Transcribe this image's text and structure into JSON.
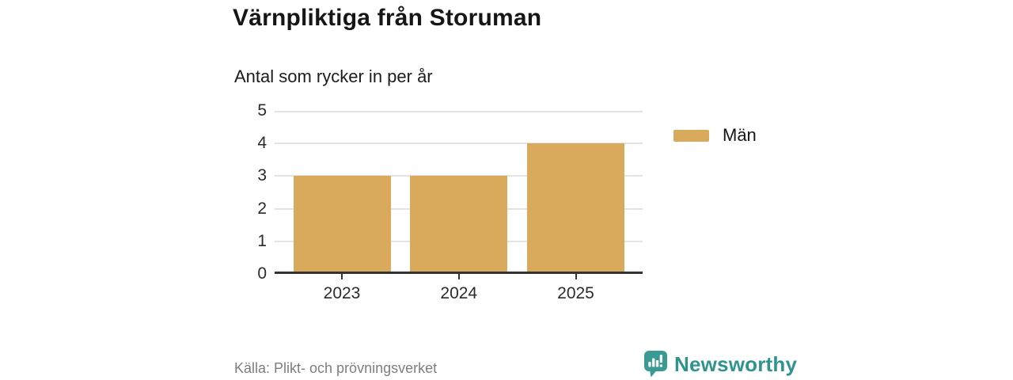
{
  "header": {
    "title": "Värnpliktiga från Storuman",
    "subtitle": "Antal som rycker in per år"
  },
  "chart_data": {
    "type": "bar",
    "categories": [
      "2023",
      "2024",
      "2025"
    ],
    "series": [
      {
        "name": "Män",
        "values": [
          3,
          3,
          4
        ],
        "color": "#d9a95c"
      }
    ],
    "title": "Värnpliktiga från Storuman",
    "subtitle": "Antal som rycker in per år",
    "xlabel": "",
    "ylabel": "",
    "ylim": [
      0,
      5
    ],
    "yticks": [
      0,
      1,
      2,
      3,
      4,
      5
    ],
    "grid": true,
    "legend_position": "right"
  },
  "legend": {
    "items": [
      {
        "label": "Män",
        "color": "#d9a95c"
      }
    ]
  },
  "footer": {
    "source": "Källa: Plikt- och prövningsverket",
    "brand": "Newsworthy"
  },
  "colors": {
    "bar": "#d9a95c",
    "brand": "#2f948e",
    "axis": "#333333",
    "gridline": "#e4e4e4",
    "title_text": "#161616",
    "subtitle_text": "#1c1c1c",
    "tick_text": "#2b2b2b",
    "source_text": "#7e7e7e"
  },
  "icons": {
    "brand_logo": "newsworthy-bar-chart-speech-bubble-icon"
  }
}
